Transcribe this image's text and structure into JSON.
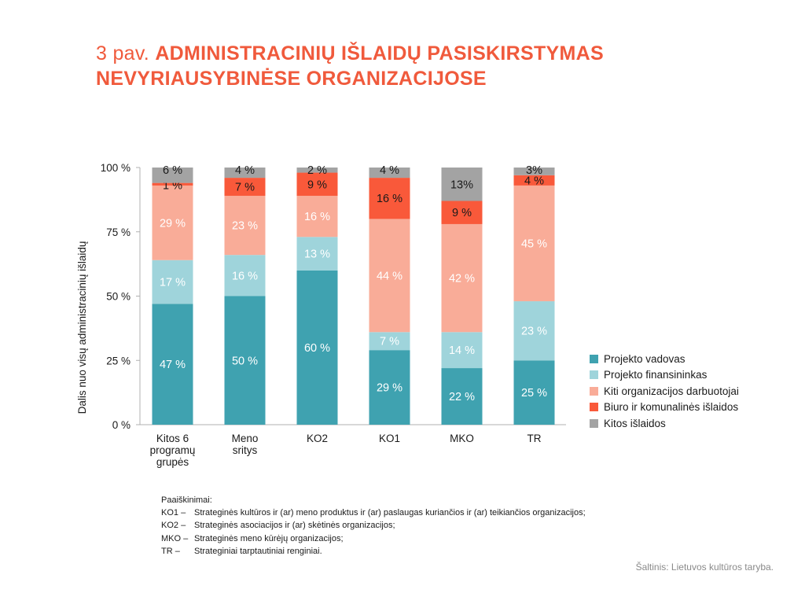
{
  "title": {
    "prefix": "3 pav.",
    "main": "ADMINISTRACINIŲ IŠLAIDŲ PASISKIRSTYMAS NEVYRIAUSYBINĖSE ORGANIZACIJOSE"
  },
  "chart_data": {
    "type": "bar",
    "stacked": true,
    "title": "ADMINISTRACINIŲ IŠLAIDŲ PASISKIRSTYMAS NEVYRIAUSYBINĖSE ORGANIZACIJOSE",
    "ylabel": "Dalis nuo visų administracinių išlaidų",
    "xlabel": "",
    "ylim": [
      0,
      100
    ],
    "yticks": [
      0,
      25,
      50,
      75,
      100
    ],
    "ytick_labels": [
      "0 %",
      "25 %",
      "50 %",
      "75 %",
      "100 %"
    ],
    "grid": false,
    "legend_position": "right",
    "categories": [
      "Kitos 6 programų grupės",
      "Meno sritys",
      "KO2",
      "KO1",
      "MKO",
      "TR"
    ],
    "category_lines": [
      [
        "Kitos 6",
        "programų",
        "grupės"
      ],
      [
        "Meno",
        "sritys"
      ],
      [
        "KO2"
      ],
      [
        "KO1"
      ],
      [
        "MKO"
      ],
      [
        "TR"
      ]
    ],
    "series": [
      {
        "name": "Projekto vadovas",
        "color": "#3fa2b0",
        "values": [
          47,
          50,
          60,
          29,
          22,
          25
        ],
        "labels": [
          "47 %",
          "50 %",
          "60 %",
          "29 %",
          "22 %",
          "25 %"
        ]
      },
      {
        "name": "Projekto finansininkas",
        "color": "#9fd4db",
        "values": [
          17,
          16,
          13,
          7,
          14,
          23
        ],
        "labels": [
          "17 %",
          "16 %",
          "13 %",
          "7 %",
          "14 %",
          "23 %"
        ]
      },
      {
        "name": "Kiti organizacijos darbuotojai",
        "color": "#f9ac98",
        "values": [
          29,
          23,
          16,
          44,
          42,
          45
        ],
        "labels": [
          "29 %",
          "23 %",
          "16 %",
          "44 %",
          "42 %",
          "45 %"
        ]
      },
      {
        "name": "Biuro ir komunalinės išlaidos",
        "color": "#f9593a",
        "values": [
          1,
          7,
          9,
          16,
          9,
          4
        ],
        "labels": [
          "1 %",
          "7 %",
          "9 %",
          "16 %",
          "9 %",
          "4 %"
        ]
      },
      {
        "name": "Kitos išlaidos",
        "color": "#a3a3a3",
        "values": [
          6,
          4,
          2,
          4,
          13,
          3
        ],
        "labels": [
          "6 %",
          "4 %",
          "2 %",
          "4 %",
          "13%",
          "3%"
        ]
      }
    ]
  },
  "notes": {
    "heading": "Paaiškinimai:",
    "items": [
      {
        "abbr": "KO1 –",
        "text": "Strateginės kultūros ir (ar) meno produktus ir (ar) paslaugas kuriančios ir (ar) teikiančios organizacijos;"
      },
      {
        "abbr": "KO2 –",
        "text": "Strateginės asociacijos ir (ar) skėtinės organizacijos;"
      },
      {
        "abbr": "MKO –",
        "text": "Strateginės meno kūrėjų organizacijos;"
      },
      {
        "abbr": "TR –",
        "text": "Strateginiai tarptautiniai renginiai."
      }
    ]
  },
  "source": "Šaltinis: Lietuvos kultūros taryba."
}
